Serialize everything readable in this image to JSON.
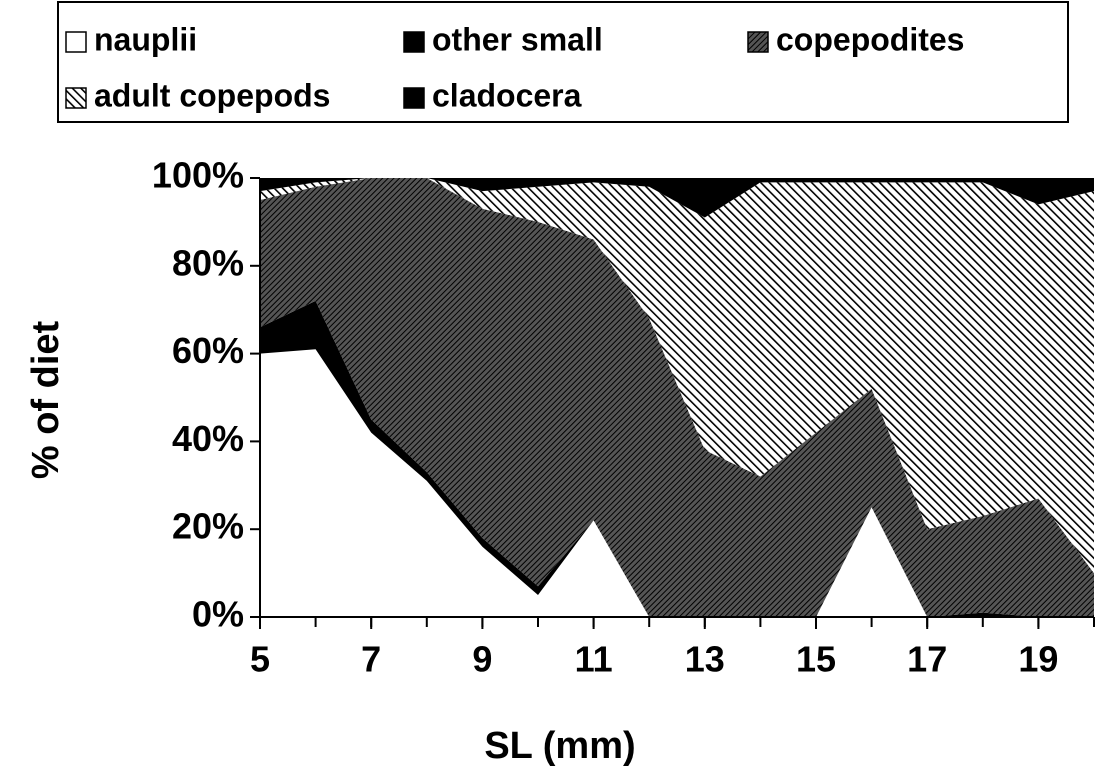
{
  "chart_data": {
    "type": "stacked_area_percent",
    "xlabel": "SL (mm)",
    "ylabel": "% of diet",
    "x": [
      5,
      6,
      7,
      8,
      9,
      10,
      11,
      12,
      13,
      14,
      15,
      16,
      17,
      18,
      19,
      20
    ],
    "series": [
      {
        "name": "nauplii",
        "color": "#ffffff",
        "pattern": "none",
        "values": [
          60,
          61,
          42,
          31,
          16,
          5,
          22,
          0,
          0,
          0,
          0,
          25,
          0,
          0,
          0,
          0
        ]
      },
      {
        "name": "other small",
        "color": "#000000",
        "pattern": "solid",
        "values": [
          6,
          11,
          3,
          2,
          2,
          2,
          0,
          0,
          0,
          0,
          0,
          0,
          0,
          1,
          0,
          0
        ]
      },
      {
        "name": "copepodites",
        "color": "#303030",
        "pattern": "dense",
        "values": [
          29,
          26,
          55,
          67,
          75,
          83,
          64,
          68,
          38,
          32,
          42,
          27,
          20,
          22,
          27,
          10
        ]
      },
      {
        "name": "adult copepods",
        "color": "#000000",
        "pattern": "diagonal",
        "values": [
          2,
          1,
          0,
          0,
          4,
          8,
          13,
          30,
          53,
          67,
          57,
          47,
          79,
          76,
          67,
          87
        ]
      },
      {
        "name": "cladocera",
        "color": "#000000",
        "pattern": "solid",
        "values": [
          3,
          1,
          0,
          0,
          3,
          2,
          1,
          2,
          9,
          1,
          1,
          1,
          1,
          1,
          6,
          3
        ]
      }
    ],
    "xlim": [
      5,
      20
    ],
    "xticks": [
      5,
      7,
      9,
      11,
      13,
      15,
      17,
      19
    ],
    "ylim": [
      0,
      100
    ],
    "yticks": [
      {
        "value": 0,
        "label": "0%"
      },
      {
        "value": 20,
        "label": "20%"
      },
      {
        "value": 40,
        "label": "40%"
      },
      {
        "value": 60,
        "label": "60%"
      },
      {
        "value": 80,
        "label": "80%"
      },
      {
        "value": 100,
        "label": "100%"
      }
    ],
    "legend": "top"
  }
}
